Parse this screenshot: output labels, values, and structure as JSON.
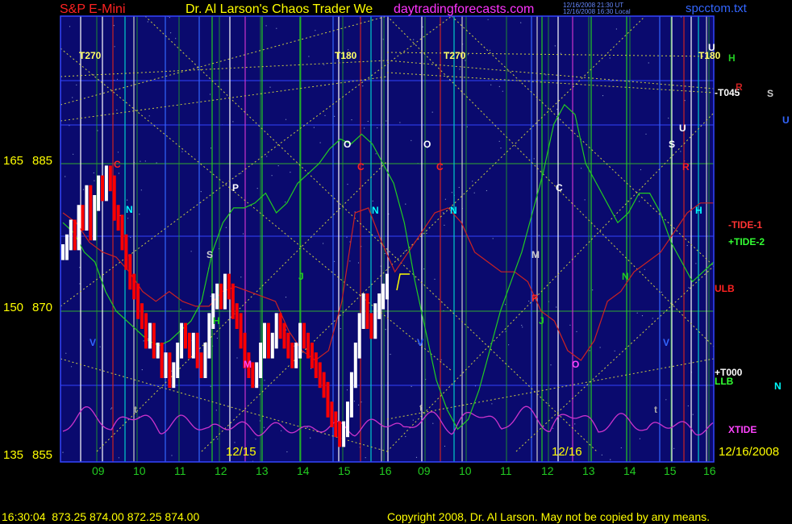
{
  "header": {
    "symbol": "S&P E-Mini",
    "title": "Dr. Al Larson's Chaos Trader We",
    "site": "daytradingforecasts.com",
    "timestamp_ut": "12/16/2008 21:30 UT",
    "timestamp_local": "12/16/2008 16:30 Local",
    "filename": "spcctom.txt"
  },
  "footer": {
    "quote": "16:30:04  873.25 874.00 872.25 874.00",
    "copyright": "Copyright 2008, Dr. Al Larson. May not be copied by any means."
  },
  "colors": {
    "background": "#000000",
    "plot_bg": "#0a0a6e",
    "axis": "#3344ff",
    "price_up": "#ffffff",
    "price_down": "#ff0000",
    "tide1": "#cc2222",
    "tide2": "#22cc22",
    "xtide": "#cc33cc",
    "hgrid": "#33aa33",
    "title_red": "#ff2222",
    "title_yellow": "#ffff00",
    "site_magenta": "#ff33ff",
    "filename_blue": "#3366ff"
  },
  "chart_data": {
    "type": "line",
    "y_axis_left": {
      "labels": [
        {
          "pair": "165",
          "price": "885",
          "value": 885
        },
        {
          "pair": "150",
          "price": "870",
          "value": 870
        },
        {
          "pair": "135",
          "price": "855",
          "value": 855
        }
      ],
      "ylim": [
        855,
        885
      ]
    },
    "x_axis": {
      "hour_labels": [
        "09",
        "10",
        "11",
        "12",
        "13",
        "14",
        "15",
        "16",
        "09",
        "10",
        "11",
        "12",
        "13",
        "14",
        "15",
        "16"
      ],
      "date_labels": [
        "12/15",
        "12/16",
        "12/16/2008"
      ]
    },
    "cycle_markers": [
      "T270",
      "T180",
      "T270",
      "T180"
    ],
    "flux_letters": [
      "C",
      "N",
      "S",
      "H",
      "J",
      "M",
      "P",
      "O",
      "C",
      "N",
      "O",
      "C",
      "N",
      "S",
      "R",
      "H",
      "M",
      "P",
      "J",
      "O",
      "C",
      "N",
      "U",
      "U",
      "t",
      "t",
      "t",
      "V",
      "V",
      "V"
    ],
    "right_labels": [
      {
        "text": "H",
        "color": "#22cc22"
      },
      {
        "text": "-T045",
        "color": "#ffffff"
      },
      {
        "text": "R",
        "color": "#cc2222"
      },
      {
        "text": "S",
        "color": "#cccccc"
      },
      {
        "text": "U",
        "color": "#3366ff"
      },
      {
        "text": "-TIDE-1",
        "color": "#ff3333"
      },
      {
        "text": "+TIDE-2",
        "color": "#33ff33"
      },
      {
        "text": "ULB",
        "color": "#ff2222"
      },
      {
        "text": "+T000",
        "color": "#ffffff"
      },
      {
        "text": "LLB",
        "color": "#33ff33"
      },
      {
        "text": "N",
        "color": "#00ffff"
      },
      {
        "text": "XTIDE",
        "color": "#ff44ff"
      }
    ],
    "price_series": [
      876,
      877,
      878.5,
      877,
      880,
      879,
      882,
      878,
      881,
      883,
      882,
      884,
      883,
      880,
      879,
      877,
      875,
      873,
      872,
      870,
      869,
      867,
      868,
      866,
      866,
      864,
      865,
      863,
      864,
      866,
      868,
      867,
      866,
      867,
      865,
      864,
      866,
      869,
      871,
      872,
      871,
      873,
      872,
      870,
      869,
      867,
      865,
      864,
      863,
      864,
      866,
      868,
      866,
      867,
      869,
      868,
      867,
      866,
      865,
      866,
      868,
      867,
      866,
      865,
      864,
      863,
      862,
      860,
      859,
      858,
      857,
      858,
      860,
      863,
      866,
      869,
      871,
      869,
      868,
      870,
      871,
      872,
      873
    ],
    "tide1_series": [
      880,
      879,
      877,
      876,
      875.5,
      874,
      872,
      871,
      872,
      871,
      870.5,
      870.5,
      872,
      872.5,
      872,
      871.5,
      871,
      868,
      866,
      865,
      866,
      871,
      880,
      880.5,
      877,
      874,
      876,
      878,
      880,
      880.5,
      879,
      876,
      875,
      874,
      874,
      873,
      870,
      869,
      866,
      865,
      867,
      871,
      872,
      874,
      875,
      876,
      878,
      880,
      881,
      881
    ],
    "tide2_series": [
      879,
      878,
      876,
      875,
      872,
      870,
      869,
      868,
      867,
      866.5,
      867,
      868,
      869,
      871,
      876,
      879,
      880.5,
      880.5,
      881,
      882,
      880,
      881,
      883,
      884,
      885,
      886.5,
      887.5,
      887,
      888,
      887,
      885,
      883,
      879,
      873,
      868,
      863,
      860,
      858,
      859,
      862,
      866,
      870,
      873,
      876,
      880,
      884,
      889,
      891,
      890,
      885,
      883,
      881,
      879,
      880,
      882,
      882,
      880,
      877,
      875,
      873,
      874,
      875
    ]
  }
}
